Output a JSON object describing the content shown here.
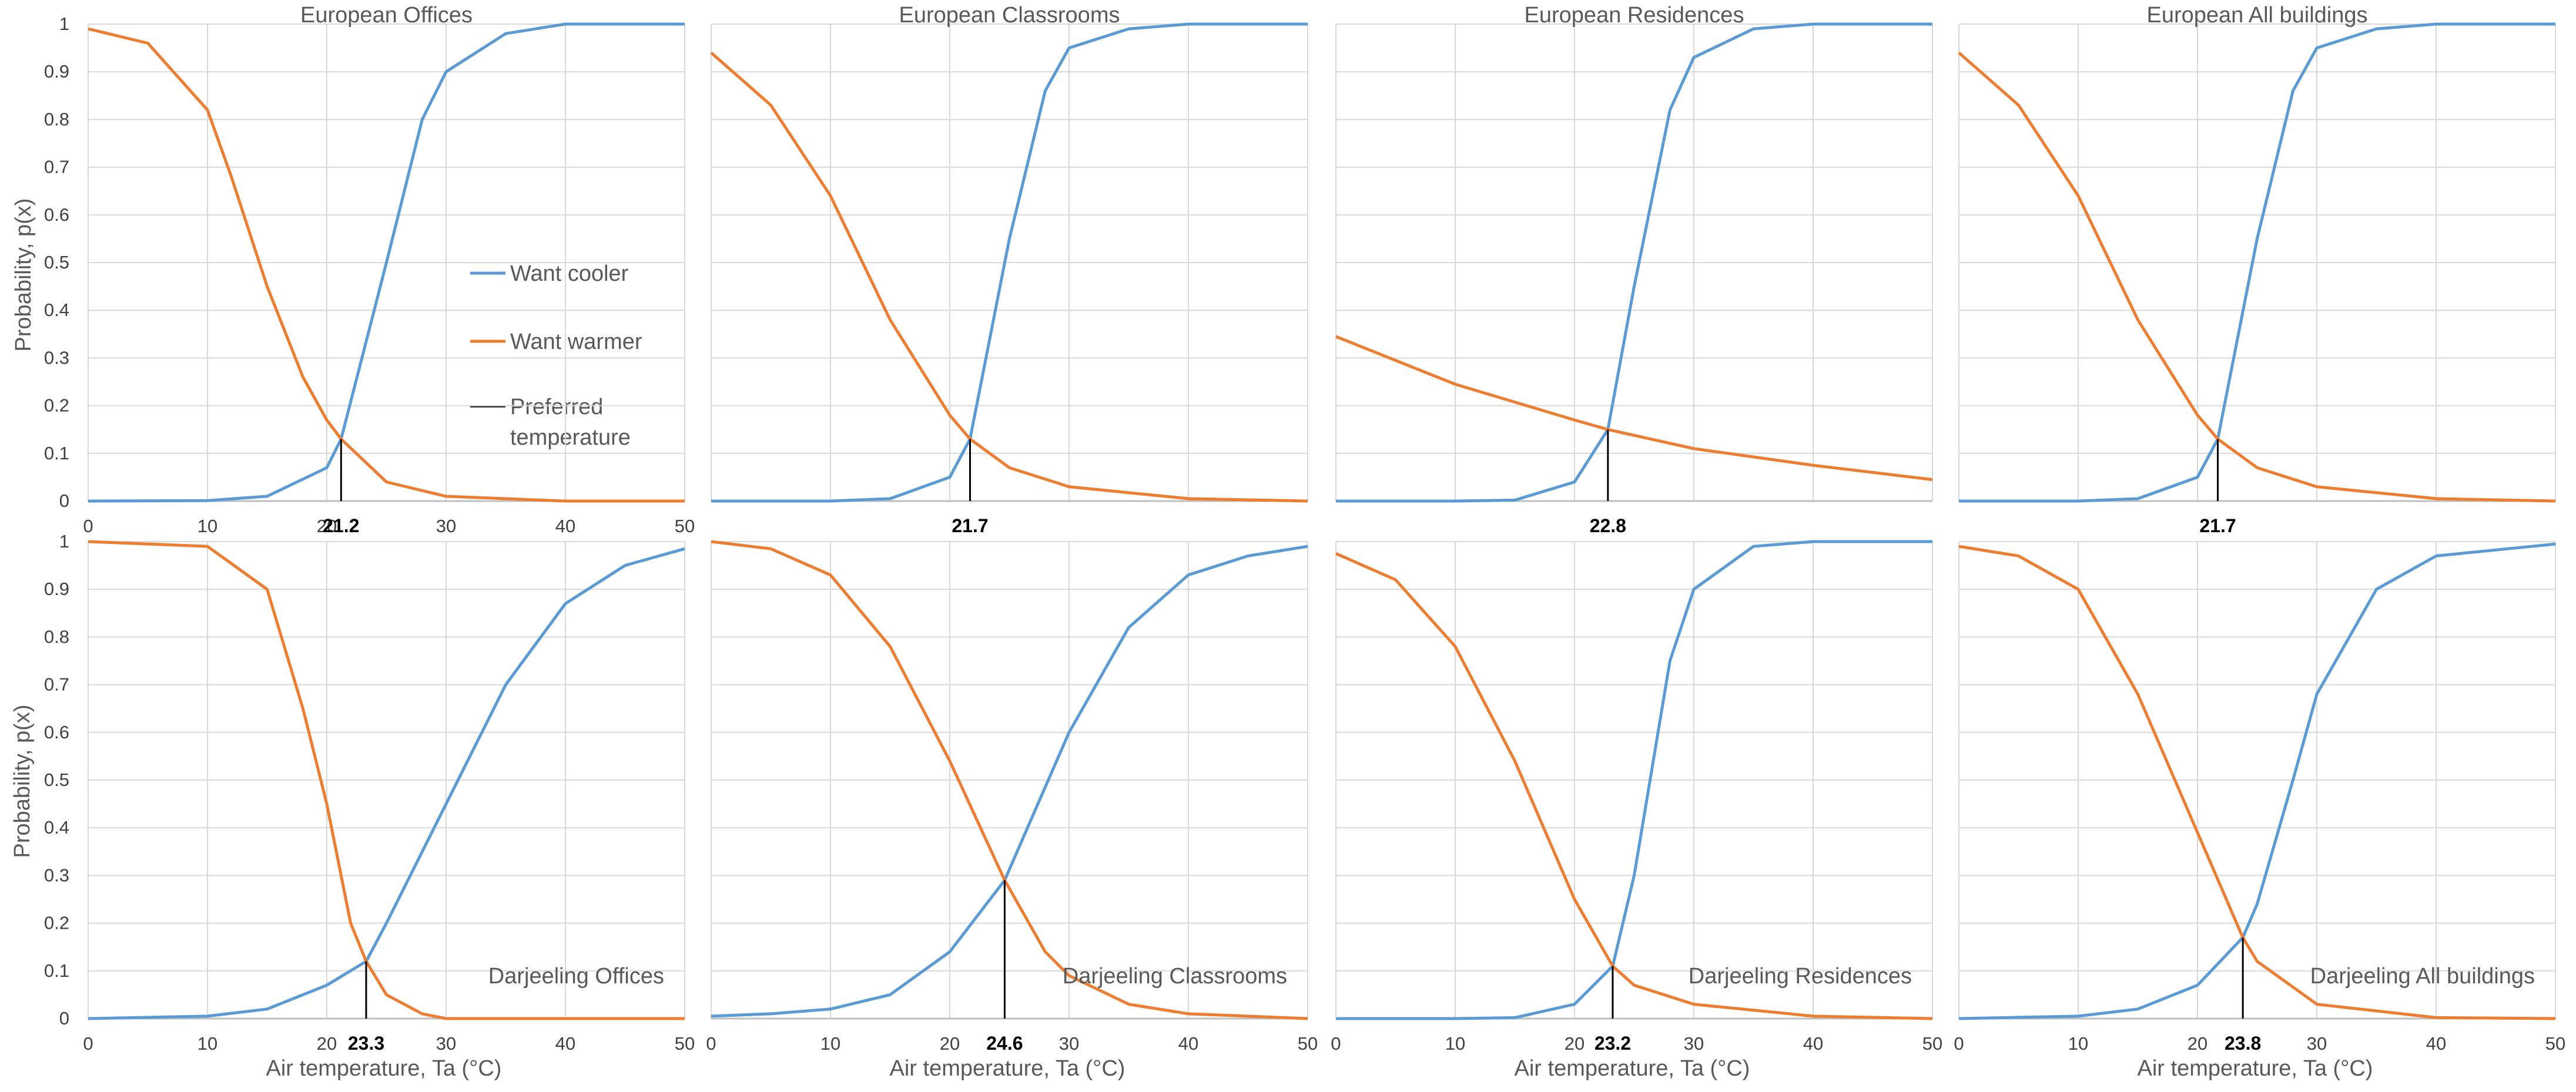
{
  "figure": {
    "x_axis_title": "Air temperature, Ta (°C)",
    "y_axis_title": "Probability, p(x)",
    "colors": {
      "cooler": "#5b9bd5",
      "warmer": "#ed7d31",
      "preferred": "#000000",
      "grid": "#d9d9d9"
    },
    "legend": {
      "placement": "inside first panel, center-right",
      "items": [
        {
          "label": "Want cooler",
          "color": "#5b9bd5"
        },
        {
          "label": "Want warmer",
          "color": "#ed7d31"
        },
        {
          "label_lines": [
            "Preferred",
            "temperature"
          ],
          "color": "#000000"
        }
      ]
    }
  },
  "chart_data": [
    {
      "type": "line",
      "title": "European Offices",
      "title_position": "top",
      "xlim": [
        0,
        50
      ],
      "ylim": [
        0,
        1
      ],
      "x_ticks": [
        "0",
        "10",
        "20",
        "30",
        "40",
        "50"
      ],
      "y_ticks": [
        "0",
        "0.1",
        "0.2",
        "0.3",
        "0.4",
        "0.5",
        "0.6",
        "0.7",
        "0.8",
        "0.9",
        "1"
      ],
      "series": [
        {
          "name": "Want cooler",
          "x": [
            0,
            10,
            15,
            20,
            21.2,
            25,
            28,
            30,
            35,
            40,
            50
          ],
          "y": [
            0,
            0.001,
            0.01,
            0.07,
            0.13,
            0.5,
            0.8,
            0.9,
            0.98,
            1,
            1
          ]
        },
        {
          "name": "Want warmer",
          "x": [
            0,
            5,
            10,
            12,
            15,
            18,
            20,
            21.2,
            25,
            30,
            40,
            50
          ],
          "y": [
            0.99,
            0.96,
            0.82,
            0.68,
            0.45,
            0.26,
            0.17,
            0.13,
            0.04,
            0.01,
            0,
            0
          ]
        }
      ],
      "preferred_temperature": {
        "x": 21.2,
        "y": 0.13,
        "label": "21.2"
      }
    },
    {
      "type": "line",
      "title": "European Classrooms",
      "title_position": "top",
      "xlim": [
        0,
        50
      ],
      "ylim": [
        0,
        1
      ],
      "x_ticks": [],
      "y_ticks": [],
      "series": [
        {
          "name": "Want cooler",
          "x": [
            0,
            10,
            15,
            20,
            21.7,
            25,
            28,
            30,
            35,
            40,
            50
          ],
          "y": [
            0,
            0,
            0.005,
            0.05,
            0.13,
            0.55,
            0.86,
            0.95,
            0.99,
            1,
            1
          ]
        },
        {
          "name": "Want warmer",
          "x": [
            0,
            5,
            10,
            15,
            20,
            21.7,
            25,
            30,
            40,
            50
          ],
          "y": [
            0.94,
            0.83,
            0.64,
            0.38,
            0.18,
            0.13,
            0.07,
            0.03,
            0.005,
            0
          ]
        }
      ],
      "preferred_temperature": {
        "x": 21.7,
        "y": 0.13,
        "label": "21.7"
      }
    },
    {
      "type": "line",
      "title": "European Residences",
      "title_position": "top",
      "xlim": [
        0,
        50
      ],
      "ylim": [
        0,
        1
      ],
      "x_ticks": [],
      "y_ticks": [],
      "series": [
        {
          "name": "Want cooler",
          "x": [
            0,
            10,
            15,
            20,
            22.8,
            25,
            28,
            30,
            35,
            40,
            50
          ],
          "y": [
            0,
            0,
            0.002,
            0.04,
            0.15,
            0.45,
            0.82,
            0.93,
            0.99,
            1,
            1
          ]
        },
        {
          "name": "Want warmer",
          "x": [
            0,
            10,
            20,
            22.8,
            30,
            40,
            50
          ],
          "y": [
            0.345,
            0.245,
            0.17,
            0.15,
            0.11,
            0.075,
            0.045
          ]
        }
      ],
      "preferred_temperature": {
        "x": 22.8,
        "y": 0.15,
        "label": "22.8"
      }
    },
    {
      "type": "line",
      "title": "European All buildings",
      "title_position": "top",
      "xlim": [
        0,
        50
      ],
      "ylim": [
        0,
        1
      ],
      "x_ticks": [],
      "y_ticks": [],
      "series": [
        {
          "name": "Want cooler",
          "x": [
            0,
            10,
            15,
            20,
            21.7,
            25,
            28,
            30,
            35,
            40,
            50
          ],
          "y": [
            0,
            0,
            0.005,
            0.05,
            0.13,
            0.55,
            0.86,
            0.95,
            0.99,
            1,
            1
          ]
        },
        {
          "name": "Want warmer",
          "x": [
            0,
            5,
            10,
            15,
            20,
            21.7,
            25,
            30,
            40,
            50
          ],
          "y": [
            0.94,
            0.83,
            0.64,
            0.38,
            0.18,
            0.13,
            0.07,
            0.03,
            0.005,
            0
          ]
        }
      ],
      "preferred_temperature": {
        "x": 21.7,
        "y": 0.13,
        "label": "21.7"
      }
    },
    {
      "type": "line",
      "title": "Darjeeling Offices",
      "title_position": "bottom-right",
      "xlim": [
        0,
        50
      ],
      "ylim": [
        0,
        1
      ],
      "x_ticks": [
        "0",
        "10",
        "20",
        "30",
        "40",
        "50"
      ],
      "y_ticks": [
        "0",
        "0.1",
        "0.2",
        "0.3",
        "0.4",
        "0.5",
        "0.6",
        "0.7",
        "0.8",
        "0.9",
        "1"
      ],
      "series": [
        {
          "name": "Want cooler",
          "x": [
            0,
            10,
            15,
            20,
            23.3,
            25,
            30,
            35,
            40,
            45,
            50
          ],
          "y": [
            0,
            0.005,
            0.02,
            0.07,
            0.12,
            0.2,
            0.45,
            0.7,
            0.87,
            0.95,
            0.985
          ]
        },
        {
          "name": "Want warmer",
          "x": [
            0,
            10,
            15,
            18,
            20,
            22,
            23.3,
            25,
            28,
            30,
            50
          ],
          "y": [
            1,
            0.99,
            0.9,
            0.65,
            0.45,
            0.2,
            0.12,
            0.05,
            0.01,
            0,
            0
          ]
        }
      ],
      "preferred_temperature": {
        "x": 23.3,
        "y": 0.12,
        "label": "23.3"
      }
    },
    {
      "type": "line",
      "title": "Darjeeling Classrooms",
      "title_position": "bottom-right",
      "xlim": [
        0,
        50
      ],
      "ylim": [
        0,
        1
      ],
      "x_ticks": [
        "0",
        "10",
        "20",
        "30",
        "40",
        "50"
      ],
      "y_ticks": [],
      "series": [
        {
          "name": "Want cooler",
          "x": [
            0,
            5,
            10,
            15,
            20,
            24.6,
            30,
            35,
            40,
            45,
            50
          ],
          "y": [
            0.005,
            0.01,
            0.02,
            0.05,
            0.14,
            0.29,
            0.6,
            0.82,
            0.93,
            0.97,
            0.99
          ]
        },
        {
          "name": "Want warmer",
          "x": [
            0,
            5,
            10,
            15,
            20,
            24.6,
            28,
            30,
            35,
            40,
            50
          ],
          "y": [
            1,
            0.985,
            0.93,
            0.78,
            0.54,
            0.29,
            0.14,
            0.09,
            0.03,
            0.01,
            0
          ]
        }
      ],
      "preferred_temperature": {
        "x": 24.6,
        "y": 0.29,
        "label": "24.6"
      }
    },
    {
      "type": "line",
      "title": "Darjeeling Residences",
      "title_position": "bottom-right",
      "xlim": [
        0,
        50
      ],
      "ylim": [
        0,
        1
      ],
      "x_ticks": [
        "0",
        "10",
        "20",
        "30",
        "40",
        "50"
      ],
      "y_ticks": [],
      "series": [
        {
          "name": "Want cooler",
          "x": [
            0,
            10,
            15,
            20,
            23.2,
            25,
            28,
            30,
            35,
            40,
            50
          ],
          "y": [
            0,
            0,
            0.002,
            0.03,
            0.11,
            0.3,
            0.75,
            0.9,
            0.99,
            1,
            1
          ]
        },
        {
          "name": "Want warmer",
          "x": [
            0,
            5,
            10,
            15,
            20,
            23.2,
            25,
            30,
            40,
            50
          ],
          "y": [
            0.975,
            0.92,
            0.78,
            0.54,
            0.25,
            0.11,
            0.07,
            0.03,
            0.005,
            0
          ]
        }
      ],
      "preferred_temperature": {
        "x": 23.2,
        "y": 0.11,
        "label": "23.2"
      }
    },
    {
      "type": "line",
      "title": "Darjeeling All buildings",
      "title_position": "bottom-right",
      "xlim": [
        0,
        50
      ],
      "ylim": [
        0,
        1
      ],
      "x_ticks": [
        "0",
        "10",
        "20",
        "30",
        "40",
        "50"
      ],
      "y_ticks": [],
      "series": [
        {
          "name": "Want cooler",
          "x": [
            0,
            10,
            15,
            20,
            23.8,
            25,
            28,
            30,
            35,
            40,
            50
          ],
          "y": [
            0,
            0.005,
            0.02,
            0.07,
            0.17,
            0.24,
            0.5,
            0.68,
            0.9,
            0.97,
            0.995
          ]
        },
        {
          "name": "Want warmer",
          "x": [
            0,
            5,
            10,
            15,
            20,
            23.8,
            25,
            30,
            40,
            50
          ],
          "y": [
            0.99,
            0.97,
            0.9,
            0.68,
            0.39,
            0.17,
            0.12,
            0.03,
            0.002,
            0
          ]
        }
      ],
      "preferred_temperature": {
        "x": 23.8,
        "y": 0.17,
        "label": "23.8"
      }
    }
  ]
}
